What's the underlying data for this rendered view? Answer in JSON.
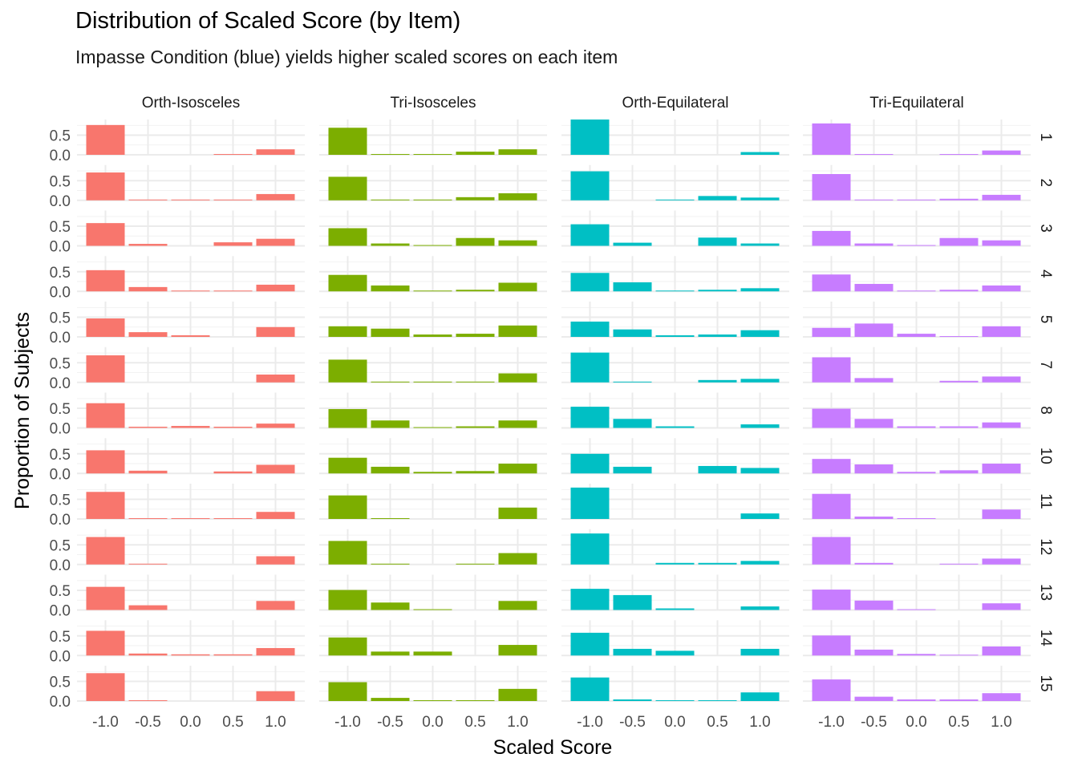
{
  "chart_data": {
    "type": "bar",
    "title": "Distribution of Scaled Score (by Item)",
    "subtitle": "Impasse Condition (blue) yields higher scaled scores on each item",
    "xlabel": "Scaled Score",
    "ylabel": "Proportion of Subjects",
    "x_categories": [
      "-1.0",
      "-0.5",
      "0.0",
      "0.5",
      "1.0"
    ],
    "y_ticks": [
      "0.0",
      "0.5"
    ],
    "ylim": [
      0,
      0.9
    ],
    "grid": true,
    "panels": [
      "Orth-Isosceles",
      "Tri-Isosceles",
      "Orth-Equilateral",
      "Tri-Equilateral"
    ],
    "panel_colors": [
      "#F8766D",
      "#7CAE00",
      "#00BFC4",
      "#C77CFF"
    ],
    "items": [
      "1",
      "2",
      "3",
      "4",
      "5",
      "7",
      "8",
      "10",
      "11",
      "12",
      "13",
      "14",
      "15"
    ],
    "values": {
      "Orth-Isosceles": [
        [
          0.76,
          0,
          0,
          0.02,
          0.14
        ],
        [
          0.71,
          0.02,
          0.02,
          0.02,
          0.16
        ],
        [
          0.58,
          0.05,
          0,
          0.09,
          0.18
        ],
        [
          0.54,
          0.11,
          0.02,
          0.02,
          0.17
        ],
        [
          0.47,
          0.12,
          0.04,
          0,
          0.25
        ],
        [
          0.69,
          0,
          0,
          0,
          0.2
        ],
        [
          0.63,
          0.03,
          0.05,
          0.03,
          0.11
        ],
        [
          0.59,
          0.07,
          0,
          0.05,
          0.22
        ],
        [
          0.69,
          0.02,
          0.02,
          0.02,
          0.18
        ],
        [
          0.7,
          0.02,
          0,
          0,
          0.21
        ],
        [
          0.59,
          0.12,
          0,
          0,
          0.23
        ],
        [
          0.63,
          0.05,
          0.03,
          0.03,
          0.19
        ],
        [
          0.71,
          0.02,
          0,
          0,
          0.25
        ]
      ],
      "Tri-Isosceles": [
        [
          0.69,
          0.02,
          0.02,
          0.08,
          0.14
        ],
        [
          0.6,
          0.02,
          0.02,
          0.08,
          0.18
        ],
        [
          0.45,
          0.06,
          0.02,
          0.2,
          0.14
        ],
        [
          0.42,
          0.15,
          0.02,
          0.04,
          0.22
        ],
        [
          0.27,
          0.21,
          0.06,
          0.08,
          0.29
        ],
        [
          0.58,
          0.02,
          0.02,
          0.02,
          0.23
        ],
        [
          0.48,
          0.19,
          0.02,
          0.04,
          0.19
        ],
        [
          0.4,
          0.17,
          0.04,
          0.06,
          0.25
        ],
        [
          0.6,
          0.02,
          0,
          0,
          0.29
        ],
        [
          0.6,
          0.02,
          0,
          0.02,
          0.29
        ],
        [
          0.51,
          0.19,
          0.02,
          0,
          0.23
        ],
        [
          0.46,
          0.1,
          0.1,
          0,
          0.27
        ],
        [
          0.48,
          0.08,
          0.02,
          0.02,
          0.31
        ]
      ],
      "Orth-Equilateral": [
        [
          0.9,
          0,
          0,
          0,
          0.07
        ],
        [
          0.74,
          0,
          0.02,
          0.11,
          0.07
        ],
        [
          0.55,
          0.08,
          0,
          0.21,
          0.06
        ],
        [
          0.47,
          0.23,
          0.02,
          0.04,
          0.08
        ],
        [
          0.39,
          0.19,
          0.04,
          0.06,
          0.17
        ],
        [
          0.76,
          0.02,
          0,
          0.06,
          0.09
        ],
        [
          0.54,
          0.23,
          0.04,
          0,
          0.09
        ],
        [
          0.5,
          0.17,
          0,
          0.19,
          0.14
        ],
        [
          0.8,
          0,
          0,
          0,
          0.14
        ],
        [
          0.79,
          0,
          0.04,
          0.04,
          0.09
        ],
        [
          0.54,
          0.38,
          0.04,
          0,
          0.09
        ],
        [
          0.58,
          0.17,
          0.12,
          0,
          0.17
        ],
        [
          0.6,
          0.04,
          0.02,
          0.02,
          0.22
        ]
      ],
      "Tri-Equilateral": [
        [
          0.8,
          0.02,
          0,
          0.02,
          0.11
        ],
        [
          0.67,
          0.02,
          0.02,
          0.04,
          0.14
        ],
        [
          0.38,
          0.06,
          0.02,
          0.2,
          0.14
        ],
        [
          0.43,
          0.19,
          0.02,
          0.04,
          0.15
        ],
        [
          0.23,
          0.34,
          0.08,
          0.02,
          0.27
        ],
        [
          0.64,
          0.11,
          0,
          0.04,
          0.15
        ],
        [
          0.49,
          0.23,
          0.04,
          0.04,
          0.14
        ],
        [
          0.37,
          0.23,
          0.04,
          0.08,
          0.25
        ],
        [
          0.64,
          0.06,
          0.02,
          0,
          0.24
        ],
        [
          0.7,
          0.04,
          0,
          0.02,
          0.15
        ],
        [
          0.52,
          0.24,
          0.02,
          0,
          0.17
        ],
        [
          0.51,
          0.15,
          0.04,
          0.02,
          0.23
        ],
        [
          0.55,
          0.11,
          0.04,
          0.04,
          0.2
        ]
      ]
    }
  }
}
